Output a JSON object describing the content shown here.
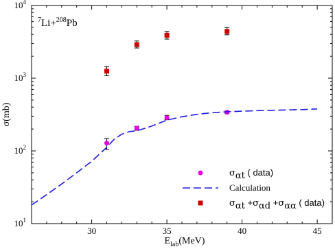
{
  "chart_data": {
    "type": "scatter",
    "title": "",
    "annotation": {
      "mass1": "7",
      "el1": "Li+",
      "mass2": "208",
      "el2": "Pb"
    },
    "xlabel": {
      "base": "E",
      "sub": "lab",
      "rest": "(MeV)"
    },
    "ylabel": "σ(mb)",
    "x_scale": "linear",
    "y_scale": "log",
    "xlim": [
      26,
      46
    ],
    "ylim": [
      10,
      10000
    ],
    "x_ticks": [
      "30",
      "35",
      "40",
      "45"
    ],
    "x_tick_values": [
      30,
      35,
      40,
      45
    ],
    "y_ticks": [
      {
        "value": 10,
        "base": "10",
        "exp": "1"
      },
      {
        "value": 100,
        "base": "10",
        "exp": "2"
      },
      {
        "value": 1000,
        "base": "10",
        "exp": "3"
      },
      {
        "value": 10000,
        "base": "10",
        "exp": "4"
      }
    ],
    "legend_position": "bottom-right",
    "series": [
      {
        "key": "at",
        "marker": "circle",
        "color": "#e000e0",
        "x": [
          31,
          33,
          35,
          39
        ],
        "y": [
          128,
          205,
          285,
          340
        ],
        "err": [
          [
            105,
            148
          ],
          [
            192,
            218
          ],
          [
            268,
            308
          ],
          [
            325,
            355
          ]
        ]
      },
      {
        "key": "calc",
        "name": "Calculation",
        "marker": "dashed-line",
        "color": "#1a1ae6",
        "x": [
          26,
          27,
          28,
          29,
          30,
          31,
          31.5,
          32,
          32.5,
          33,
          33.5,
          34,
          35,
          36,
          37,
          38,
          39,
          40,
          41,
          42,
          43,
          44,
          45
        ],
        "y": [
          18,
          25,
          35,
          50,
          72,
          112,
          145,
          170,
          184,
          190,
          203,
          220,
          265,
          295,
          318,
          335,
          345,
          352,
          358,
          362,
          366,
          370,
          378
        ]
      },
      {
        "key": "sum",
        "marker": "square",
        "color": "#d00000",
        "x": [
          31,
          33,
          35,
          39
        ],
        "y": [
          1250,
          2900,
          3900,
          4400
        ],
        "err": [
          [
            1080,
            1450
          ],
          [
            2600,
            3250
          ],
          [
            3450,
            4400
          ],
          [
            3950,
            4950
          ]
        ]
      }
    ],
    "legend": [
      {
        "key": "at",
        "parts": [
          {
            "t": "σ",
            "greek": true
          },
          {
            "t": "αt",
            "sub": true,
            "greek": true
          },
          {
            "t": " ( data)"
          }
        ]
      },
      {
        "key": "calc",
        "parts": [
          {
            "t": "Calculation",
            "plain": true
          }
        ]
      },
      {
        "key": "sum",
        "parts": [
          {
            "t": "σ",
            "greek": true
          },
          {
            "t": "αt",
            "sub": true,
            "greek": true
          },
          {
            "t": " +"
          },
          {
            "t": "σ",
            "greek": true
          },
          {
            "t": "αd",
            "sub": true,
            "greek": true
          },
          {
            "t": " +"
          },
          {
            "t": "σ",
            "greek": true
          },
          {
            "t": "αα",
            "sub": true,
            "greek": true
          },
          {
            "t": " ( data)"
          }
        ]
      }
    ],
    "colors": {
      "axis": "#000000",
      "background": "#ffffff"
    }
  }
}
